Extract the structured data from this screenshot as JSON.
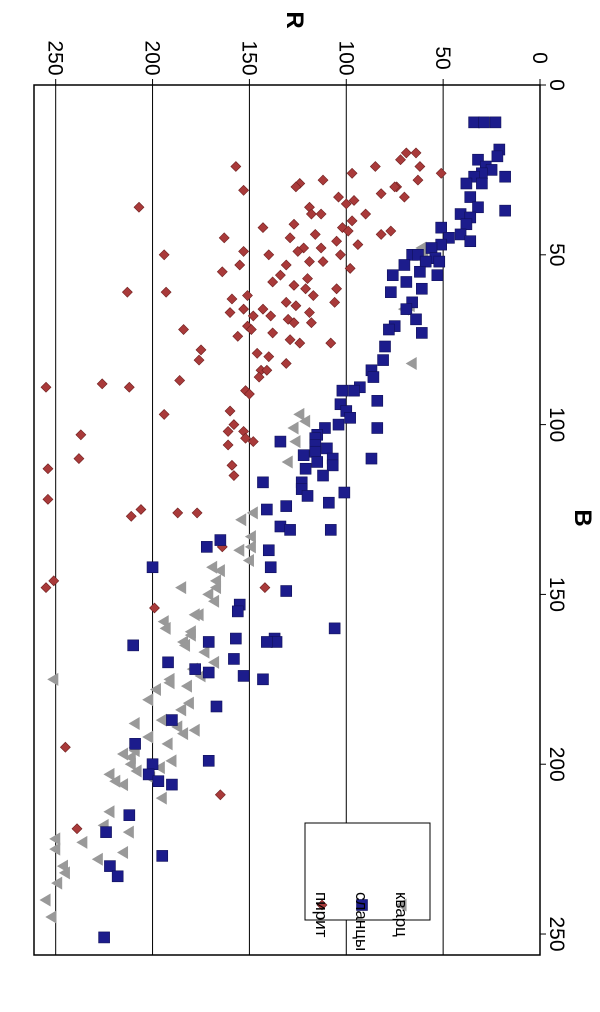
{
  "chart_data": {
    "type": "scatter",
    "orientation": "rotated-90-clockwise",
    "xlabel": "B",
    "ylabel": "R",
    "xlim": [
      0,
      255
    ],
    "ylim": [
      0,
      255
    ],
    "x_ticks": [
      0,
      50,
      100,
      150,
      200,
      250
    ],
    "y_ticks": [
      0,
      50,
      100,
      150,
      200,
      250
    ],
    "y_gridlines": [
      50,
      100,
      150,
      200,
      250
    ],
    "legend": {
      "position": "bottom-right",
      "entries": [
        "пирит",
        "сланцы",
        "кварц"
      ]
    },
    "series": [
      {
        "name": "пирит",
        "marker": "diamond",
        "color": "#a93a3a",
        "points": [
          [
            20,
            69
          ],
          [
            20,
            64
          ],
          [
            22,
            72
          ],
          [
            24,
            62
          ],
          [
            24,
            85
          ],
          [
            24,
            157
          ],
          [
            26,
            51
          ],
          [
            26,
            97
          ],
          [
            28,
            63
          ],
          [
            28,
            112
          ],
          [
            29,
            124
          ],
          [
            30,
            74
          ],
          [
            30,
            75
          ],
          [
            30,
            126
          ],
          [
            31,
            153
          ],
          [
            32,
            82
          ],
          [
            33,
            104
          ],
          [
            33,
            70
          ],
          [
            34,
            96
          ],
          [
            35,
            100
          ],
          [
            36,
            119
          ],
          [
            36,
            207
          ],
          [
            38,
            90
          ],
          [
            38,
            118
          ],
          [
            38,
            113
          ],
          [
            40,
            97
          ],
          [
            41,
            127
          ],
          [
            42,
            102
          ],
          [
            42,
            143
          ],
          [
            43,
            77
          ],
          [
            43,
            99
          ],
          [
            44,
            82
          ],
          [
            44,
            116
          ],
          [
            45,
            129
          ],
          [
            45,
            163
          ],
          [
            46,
            105
          ],
          [
            47,
            94
          ],
          [
            48,
            113
          ],
          [
            48,
            122
          ],
          [
            49,
            125
          ],
          [
            49,
            153
          ],
          [
            50,
            103
          ],
          [
            50,
            140
          ],
          [
            50,
            194
          ],
          [
            52,
            119
          ],
          [
            52,
            112
          ],
          [
            53,
            155
          ],
          [
            53,
            131
          ],
          [
            54,
            98
          ],
          [
            55,
            164
          ],
          [
            56,
            134
          ],
          [
            57,
            120
          ],
          [
            58,
            138
          ],
          [
            59,
            127
          ],
          [
            60,
            121
          ],
          [
            60,
            105
          ],
          [
            61,
            213
          ],
          [
            61,
            193
          ],
          [
            62,
            151
          ],
          [
            62,
            117
          ],
          [
            63,
            159
          ],
          [
            64,
            106
          ],
          [
            64,
            131
          ],
          [
            65,
            126
          ],
          [
            66,
            153
          ],
          [
            66,
            143
          ],
          [
            67,
            160
          ],
          [
            67,
            119
          ],
          [
            68,
            139
          ],
          [
            68,
            148
          ],
          [
            69,
            130
          ],
          [
            70,
            127
          ],
          [
            70,
            118
          ],
          [
            71,
            151
          ],
          [
            72,
            149
          ],
          [
            72,
            184
          ],
          [
            73,
            138
          ],
          [
            74,
            156
          ],
          [
            75,
            129
          ],
          [
            76,
            124
          ],
          [
            76,
            108
          ],
          [
            78,
            175
          ],
          [
            79,
            146
          ],
          [
            80,
            140
          ],
          [
            81,
            176
          ],
          [
            82,
            131
          ],
          [
            84,
            144
          ],
          [
            84,
            141
          ],
          [
            86,
            145
          ],
          [
            87,
            186
          ],
          [
            88,
            226
          ],
          [
            89,
            212
          ],
          [
            89,
            255
          ],
          [
            90,
            152
          ],
          [
            91,
            150
          ],
          [
            96,
            160
          ],
          [
            97,
            194
          ],
          [
            100,
            158
          ],
          [
            102,
            161
          ],
          [
            102,
            153
          ],
          [
            103,
            237
          ],
          [
            104,
            152
          ],
          [
            105,
            148
          ],
          [
            106,
            161
          ],
          [
            110,
            238
          ],
          [
            112,
            159
          ],
          [
            113,
            254
          ],
          [
            115,
            158
          ],
          [
            122,
            254
          ],
          [
            125,
            206
          ],
          [
            126,
            187
          ],
          [
            126,
            177
          ],
          [
            127,
            211
          ],
          [
            136,
            164
          ],
          [
            146,
            251
          ],
          [
            148,
            255
          ],
          [
            148,
            142
          ],
          [
            154,
            199
          ],
          [
            195,
            245
          ],
          [
            209,
            165
          ],
          [
            219,
            239
          ]
        ]
      },
      {
        "name": "сланцы",
        "marker": "square",
        "color": "#1c1c8c",
        "points": [
          [
            11,
            34
          ],
          [
            11,
            29
          ],
          [
            11,
            23
          ],
          [
            19,
            21
          ],
          [
            21,
            22
          ],
          [
            22,
            32
          ],
          [
            24,
            28
          ],
          [
            25,
            25
          ],
          [
            26,
            30
          ],
          [
            27,
            34
          ],
          [
            27,
            18
          ],
          [
            29,
            38
          ],
          [
            29,
            30
          ],
          [
            33,
            36
          ],
          [
            36,
            32
          ],
          [
            37,
            18
          ],
          [
            38,
            41
          ],
          [
            39,
            36
          ],
          [
            41,
            38
          ],
          [
            42,
            51
          ],
          [
            44,
            41
          ],
          [
            45,
            47
          ],
          [
            46,
            36
          ],
          [
            47,
            51
          ],
          [
            48,
            56
          ],
          [
            50,
            66
          ],
          [
            50,
            63
          ],
          [
            51,
            54
          ],
          [
            52,
            52
          ],
          [
            52,
            59
          ],
          [
            53,
            70
          ],
          [
            55,
            62
          ],
          [
            56,
            53
          ],
          [
            56,
            76
          ],
          [
            58,
            69
          ],
          [
            60,
            61
          ],
          [
            61,
            77
          ],
          [
            64,
            66
          ],
          [
            66,
            69
          ],
          [
            69,
            64
          ],
          [
            71,
            75
          ],
          [
            72,
            78
          ],
          [
            73,
            61
          ],
          [
            77,
            80
          ],
          [
            81,
            81
          ],
          [
            84,
            87
          ],
          [
            86,
            86
          ],
          [
            89,
            93
          ],
          [
            90,
            102
          ],
          [
            90,
            96
          ],
          [
            93,
            84
          ],
          [
            94,
            103
          ],
          [
            96,
            100
          ],
          [
            98,
            98
          ],
          [
            100,
            104
          ],
          [
            101,
            111
          ],
          [
            101,
            84
          ],
          [
            103,
            115
          ],
          [
            104,
            116
          ],
          [
            105,
            134
          ],
          [
            106,
            116
          ],
          [
            107,
            110
          ],
          [
            108,
            116
          ],
          [
            109,
            122
          ],
          [
            110,
            107
          ],
          [
            110,
            87
          ],
          [
            111,
            115
          ],
          [
            112,
            107
          ],
          [
            113,
            121
          ],
          [
            115,
            112
          ],
          [
            117,
            123
          ],
          [
            117,
            143
          ],
          [
            119,
            123
          ],
          [
            120,
            101
          ],
          [
            121,
            120
          ],
          [
            123,
            109
          ],
          [
            124,
            131
          ],
          [
            125,
            141
          ],
          [
            130,
            134
          ],
          [
            131,
            129
          ],
          [
            131,
            108
          ],
          [
            134,
            165
          ],
          [
            136,
            172
          ],
          [
            137,
            140
          ],
          [
            142,
            139
          ],
          [
            142,
            200
          ],
          [
            149,
            131
          ],
          [
            153,
            155
          ],
          [
            155,
            156
          ],
          [
            160,
            106
          ],
          [
            163,
            137
          ],
          [
            163,
            157
          ],
          [
            164,
            136
          ],
          [
            164,
            141
          ],
          [
            164,
            171
          ],
          [
            165,
            210
          ],
          [
            169,
            158
          ],
          [
            170,
            192
          ],
          [
            172,
            178
          ],
          [
            173,
            171
          ],
          [
            174,
            153
          ],
          [
            175,
            143
          ],
          [
            183,
            167
          ],
          [
            187,
            190
          ],
          [
            194,
            209
          ],
          [
            199,
            171
          ],
          [
            200,
            200
          ],
          [
            203,
            202
          ],
          [
            205,
            197
          ],
          [
            206,
            190
          ],
          [
            215,
            212
          ],
          [
            220,
            224
          ],
          [
            227,
            195
          ],
          [
            230,
            222
          ],
          [
            233,
            218
          ],
          [
            251,
            225
          ]
        ]
      },
      {
        "name": "кварц",
        "marker": "triangle",
        "color": "#999999",
        "points": [
          [
            48,
            61
          ],
          [
            50,
            60
          ],
          [
            65,
            67
          ],
          [
            66,
            70
          ],
          [
            82,
            66
          ],
          [
            97,
            124
          ],
          [
            99,
            121
          ],
          [
            101,
            127
          ],
          [
            105,
            126
          ],
          [
            111,
            130
          ],
          [
            126,
            148
          ],
          [
            128,
            154
          ],
          [
            133,
            149
          ],
          [
            136,
            149
          ],
          [
            137,
            155
          ],
          [
            140,
            150
          ],
          [
            142,
            169
          ],
          [
            143,
            165
          ],
          [
            146,
            167
          ],
          [
            148,
            167
          ],
          [
            148,
            185
          ],
          [
            150,
            171
          ],
          [
            152,
            168
          ],
          [
            156,
            176
          ],
          [
            156,
            178
          ],
          [
            158,
            194
          ],
          [
            160,
            193
          ],
          [
            161,
            180
          ],
          [
            162,
            180
          ],
          [
            164,
            184
          ],
          [
            165,
            183
          ],
          [
            167,
            173
          ],
          [
            170,
            168
          ],
          [
            172,
            179
          ],
          [
            174,
            175
          ],
          [
            175,
            191
          ],
          [
            175,
            251
          ],
          [
            176,
            191
          ],
          [
            177,
            182
          ],
          [
            178,
            198
          ],
          [
            181,
            202
          ],
          [
            182,
            181
          ],
          [
            184,
            185
          ],
          [
            187,
            195
          ],
          [
            188,
            209
          ],
          [
            189,
            187
          ],
          [
            190,
            178
          ],
          [
            191,
            184
          ],
          [
            192,
            202
          ],
          [
            194,
            192
          ],
          [
            195,
            209
          ],
          [
            196,
            209
          ],
          [
            197,
            215
          ],
          [
            198,
            211
          ],
          [
            199,
            190
          ],
          [
            200,
            211
          ],
          [
            201,
            196
          ],
          [
            202,
            208
          ],
          [
            203,
            222
          ],
          [
            204,
            201
          ],
          [
            205,
            219
          ],
          [
            206,
            215
          ],
          [
            210,
            195
          ],
          [
            214,
            222
          ],
          [
            218,
            225
          ],
          [
            220,
            212
          ],
          [
            222,
            250
          ],
          [
            223,
            236
          ],
          [
            225,
            250
          ],
          [
            226,
            215
          ],
          [
            228,
            228
          ],
          [
            230,
            246
          ],
          [
            232,
            245
          ],
          [
            235,
            249
          ],
          [
            240,
            255
          ],
          [
            245,
            252
          ]
        ]
      }
    ]
  }
}
